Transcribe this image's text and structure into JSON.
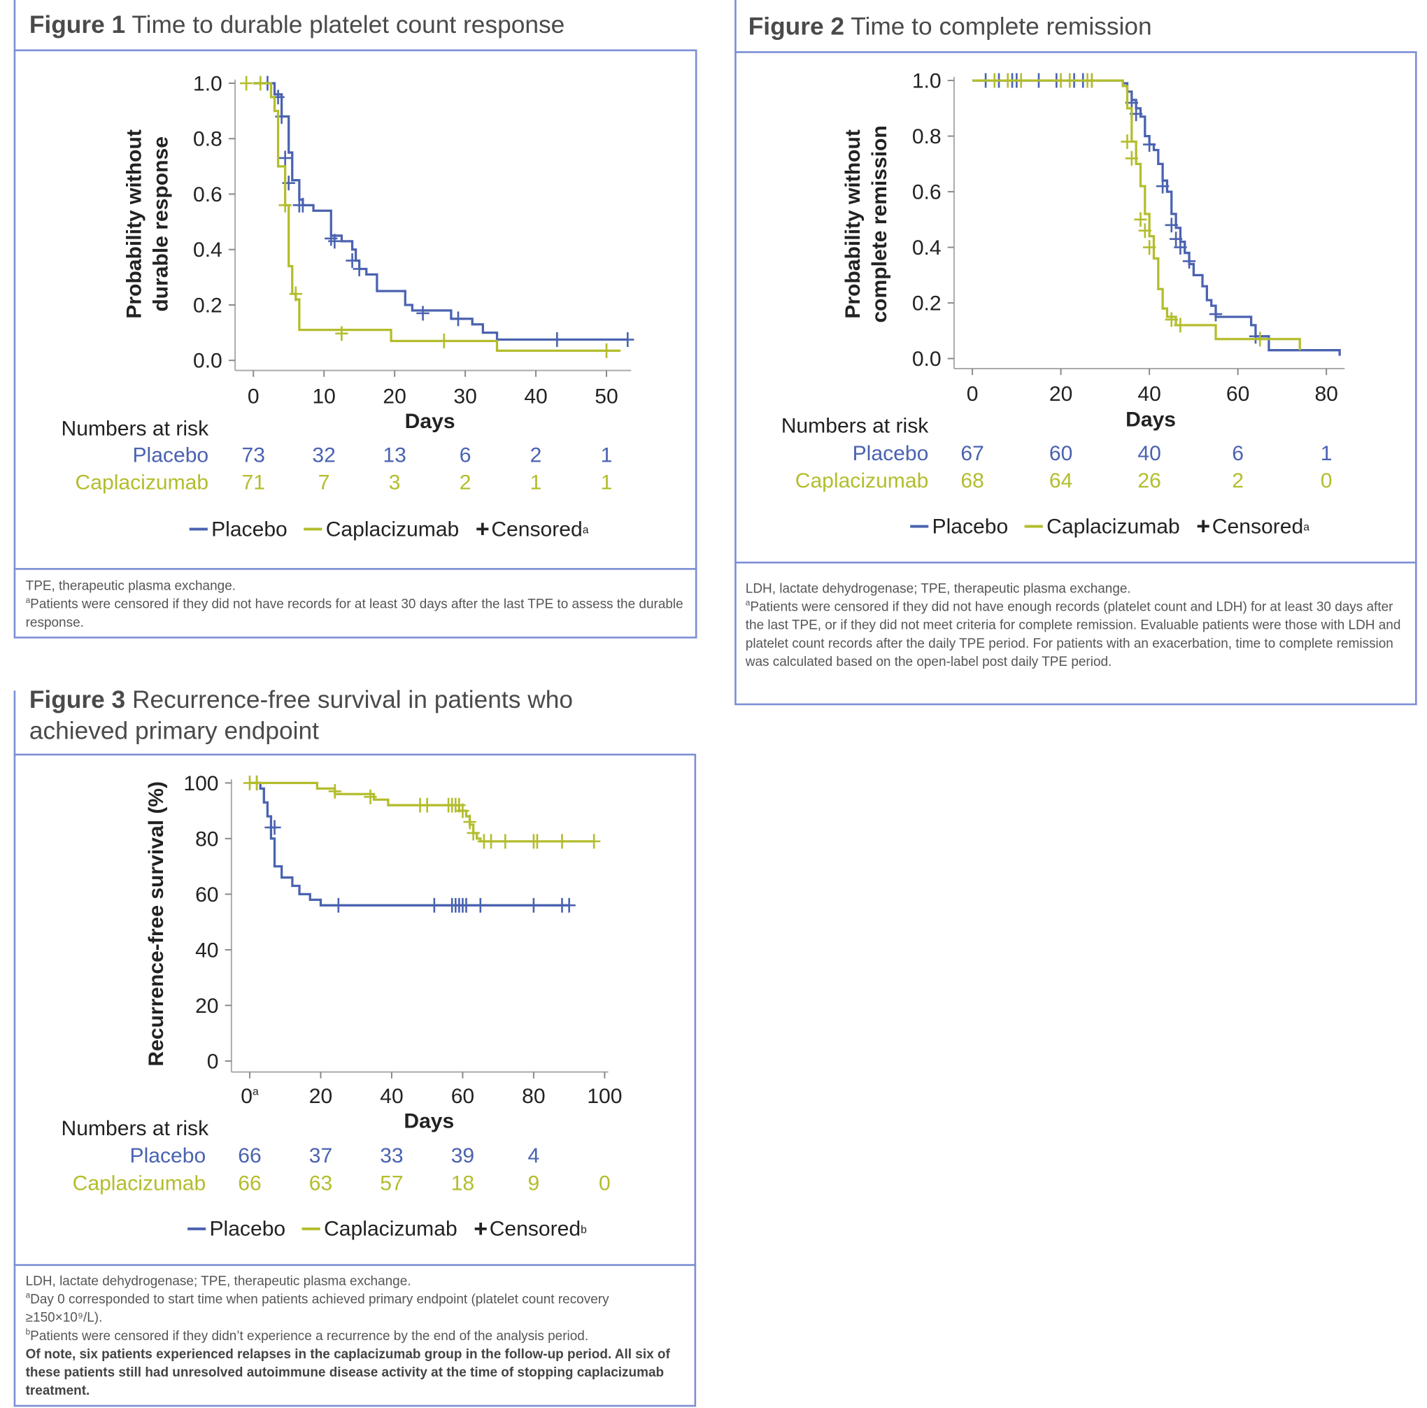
{
  "colors": {
    "placebo": "#4a62b0",
    "caplacizumab": "#b3bd2c",
    "frame": "#7c8fd6"
  },
  "legend": {
    "placebo": "Placebo",
    "caplacizumab": "Caplacizumab",
    "censored": "Censored",
    "censor_icon": "plus-icon"
  },
  "numbers_at_risk_label": "Numbers at risk",
  "chart_data": [
    {
      "type": "line",
      "figure_label": "Figure 1",
      "title": "Time to durable platelet count response",
      "xlabel": "Days",
      "ylabel": [
        "Probability without",
        "durable response"
      ],
      "xlim": [
        0,
        50
      ],
      "ylim": [
        0,
        1
      ],
      "xticks": [
        "0",
        "10",
        "20",
        "30",
        "40",
        "50"
      ],
      "xtick_values": [
        0,
        10,
        20,
        30,
        40,
        50
      ],
      "yticks": [
        "0.0",
        "0.2",
        "0.4",
        "0.6",
        "0.8",
        "1.0"
      ],
      "ytick_values": [
        0,
        0.2,
        0.4,
        0.6,
        0.8,
        1.0
      ],
      "censored_marker": "a",
      "series": [
        {
          "name": "Placebo",
          "key": "placebo",
          "steps": [
            [
              0,
              1
            ],
            [
              3,
              0.96
            ],
            [
              4,
              0.88
            ],
            [
              5,
              0.75
            ],
            [
              5.5,
              0.65
            ],
            [
              6.5,
              0.58
            ],
            [
              7,
              0.56
            ],
            [
              8.5,
              0.54
            ],
            [
              11,
              0.45
            ],
            [
              12.5,
              0.43
            ],
            [
              14,
              0.4
            ],
            [
              14.5,
              0.36
            ],
            [
              15,
              0.33
            ],
            [
              16,
              0.31
            ],
            [
              17.5,
              0.25
            ],
            [
              21.5,
              0.2
            ],
            [
              22.5,
              0.18
            ],
            [
              28,
              0.15
            ],
            [
              31,
              0.13
            ],
            [
              32.5,
              0.1
            ],
            [
              34.5,
              0.075
            ],
            [
              53,
              0.075
            ]
          ],
          "censored": [
            [
              2,
              1
            ],
            [
              3.5,
              0.95
            ],
            [
              4,
              0.88
            ],
            [
              4.5,
              0.73
            ],
            [
              5,
              0.64
            ],
            [
              6.5,
              0.56
            ],
            [
              7,
              0.56
            ],
            [
              11,
              0.44
            ],
            [
              11.5,
              0.43
            ],
            [
              14,
              0.36
            ],
            [
              15,
              0.33
            ],
            [
              24,
              0.17
            ],
            [
              29,
              0.15
            ],
            [
              43,
              0.075
            ],
            [
              53,
              0.075
            ]
          ],
          "at_risk": [
            "73",
            "32",
            "13",
            "6",
            "2",
            "1"
          ]
        },
        {
          "name": "Caplacizumab",
          "key": "caplacizumab",
          "steps": [
            [
              0,
              1
            ],
            [
              2.5,
              0.95
            ],
            [
              3,
              0.9
            ],
            [
              3.5,
              0.7
            ],
            [
              4.5,
              0.56
            ],
            [
              5,
              0.34
            ],
            [
              5.5,
              0.24
            ],
            [
              6,
              0.22
            ],
            [
              6.5,
              0.11
            ],
            [
              19.5,
              0.07
            ],
            [
              34.5,
              0.035
            ],
            [
              52,
              0.035
            ]
          ],
          "censored": [
            [
              -1,
              1
            ],
            [
              1,
              1
            ],
            [
              4.5,
              0.56
            ],
            [
              6,
              0.24
            ],
            [
              12.5,
              0.097
            ],
            [
              27,
              0.07
            ],
            [
              50,
              0.035
            ]
          ],
          "at_risk": [
            "71",
            "7",
            "3",
            "2",
            "1",
            "1"
          ]
        }
      ],
      "footnotes": [
        {
          "marker": "",
          "text": "TPE, therapeutic plasma exchange."
        },
        {
          "marker": "a",
          "text": "Patients were censored if they did not have records for at least 30 days after the last TPE to assess the durable response."
        }
      ]
    },
    {
      "type": "line",
      "figure_label": "Figure 2",
      "title": "Time to complete remission",
      "xlabel": "Days",
      "ylabel": [
        "Probability without",
        "complete remission"
      ],
      "xlim": [
        0,
        80
      ],
      "ylim": [
        0,
        1
      ],
      "xticks": [
        "0",
        "20",
        "40",
        "60",
        "80"
      ],
      "xtick_values": [
        0,
        20,
        40,
        60,
        80
      ],
      "yticks": [
        "0.0",
        "0.2",
        "0.4",
        "0.6",
        "0.8",
        "1.0"
      ],
      "ytick_values": [
        0,
        0.2,
        0.4,
        0.6,
        0.8,
        1.0
      ],
      "censored_marker": "a",
      "series": [
        {
          "name": "Placebo",
          "key": "placebo",
          "steps": [
            [
              0,
              1
            ],
            [
              34,
              0.99
            ],
            [
              35,
              0.96
            ],
            [
              36,
              0.93
            ],
            [
              37,
              0.9
            ],
            [
              38,
              0.87
            ],
            [
              39,
              0.8
            ],
            [
              40,
              0.77
            ],
            [
              41,
              0.75
            ],
            [
              42,
              0.7
            ],
            [
              43,
              0.64
            ],
            [
              44,
              0.6
            ],
            [
              45,
              0.52
            ],
            [
              46,
              0.47
            ],
            [
              47,
              0.42
            ],
            [
              48,
              0.38
            ],
            [
              49,
              0.34
            ],
            [
              50,
              0.3
            ],
            [
              52,
              0.26
            ],
            [
              53,
              0.21
            ],
            [
              54,
              0.19
            ],
            [
              55,
              0.15
            ],
            [
              63,
              0.12
            ],
            [
              64,
              0.08
            ],
            [
              67,
              0.03
            ],
            [
              83,
              0.03
            ],
            [
              83,
              0.01
            ]
          ],
          "censored": [
            [
              3,
              1
            ],
            [
              6,
              1
            ],
            [
              9,
              1
            ],
            [
              10,
              1
            ],
            [
              15,
              1
            ],
            [
              19,
              1
            ],
            [
              23,
              1
            ],
            [
              25,
              1
            ],
            [
              27,
              1
            ],
            [
              36,
              0.92
            ],
            [
              37,
              0.88
            ],
            [
              40,
              0.77
            ],
            [
              43,
              0.62
            ],
            [
              45,
              0.48
            ],
            [
              46,
              0.43
            ],
            [
              47,
              0.4
            ],
            [
              49,
              0.35
            ],
            [
              55,
              0.16
            ],
            [
              64,
              0.08
            ]
          ],
          "at_risk": [
            "67",
            "60",
            "40",
            "6",
            "1"
          ]
        },
        {
          "name": "Caplacizumab",
          "key": "caplacizumab",
          "steps": [
            [
              0,
              1
            ],
            [
              34,
              0.98
            ],
            [
              35,
              0.9
            ],
            [
              36,
              0.78
            ],
            [
              37,
              0.7
            ],
            [
              38,
              0.62
            ],
            [
              39,
              0.52
            ],
            [
              40,
              0.44
            ],
            [
              41,
              0.36
            ],
            [
              42,
              0.25
            ],
            [
              43,
              0.18
            ],
            [
              44,
              0.15
            ],
            [
              46,
              0.12
            ],
            [
              55,
              0.07
            ],
            [
              74,
              0.07
            ],
            [
              74,
              0.03
            ]
          ],
          "censored": [
            [
              5,
              1
            ],
            [
              8,
              1
            ],
            [
              11,
              1
            ],
            [
              20,
              1
            ],
            [
              22,
              1
            ],
            [
              26,
              1
            ],
            [
              27,
              1
            ],
            [
              35,
              0.78
            ],
            [
              36,
              0.72
            ],
            [
              38,
              0.5
            ],
            [
              39,
              0.46
            ],
            [
              40,
              0.4
            ],
            [
              45,
              0.14
            ],
            [
              47,
              0.12
            ],
            [
              65,
              0.07
            ]
          ],
          "at_risk": [
            "68",
            "64",
            "26",
            "2",
            "0"
          ]
        }
      ],
      "footnotes": [
        {
          "marker": "",
          "text": "LDH, lactate dehydrogenase; TPE, therapeutic plasma exchange."
        },
        {
          "marker": "a",
          "text": "Patients were censored if they did not have enough records (platelet count and LDH) for at least 30 days after the last TPE, or if they did not meet criteria for complete remission. Evaluable patients were those with LDH and platelet count records after the daily TPE period. For patients with an exacerbation, time to complete remission was calculated based on the open-label post daily TPE period."
        }
      ]
    },
    {
      "type": "line",
      "figure_label": "Figure 3",
      "title": "Recurrence-free survival in patients who achieved primary endpoint",
      "xlabel": "Days",
      "ylabel": [
        "Recurrence-free survival (%)"
      ],
      "xlim": [
        0,
        100
      ],
      "ylim": [
        0,
        100
      ],
      "xticks": [
        "0",
        "20",
        "40",
        "60",
        "80",
        "100"
      ],
      "xtick_values": [
        0,
        20,
        40,
        60,
        80,
        100
      ],
      "xtick0_marker": "a",
      "yticks": [
        "0",
        "20",
        "40",
        "60",
        "80",
        "100"
      ],
      "ytick_values": [
        0,
        20,
        40,
        60,
        80,
        100
      ],
      "censored_marker": "b",
      "series": [
        {
          "name": "Placebo",
          "key": "placebo",
          "steps": [
            [
              0,
              100
            ],
            [
              3,
              98
            ],
            [
              4,
              93
            ],
            [
              5,
              88
            ],
            [
              6,
              80
            ],
            [
              7,
              70
            ],
            [
              9,
              66
            ],
            [
              12,
              63
            ],
            [
              14,
              60
            ],
            [
              17,
              58
            ],
            [
              20,
              56
            ],
            [
              90,
              56
            ]
          ],
          "censored": [
            [
              2,
              100
            ],
            [
              6,
              84
            ],
            [
              7,
              84
            ],
            [
              25,
              56
            ],
            [
              52,
              56
            ],
            [
              57,
              56
            ],
            [
              58,
              56
            ],
            [
              59,
              56
            ],
            [
              60,
              56
            ],
            [
              61,
              56
            ],
            [
              65,
              56
            ],
            [
              80,
              56
            ],
            [
              88,
              56
            ],
            [
              90,
              56
            ]
          ],
          "at_risk": [
            "66",
            "37",
            "33",
            "39",
            "4",
            ""
          ]
        },
        {
          "name": "Caplacizumab",
          "key": "caplacizumab",
          "steps": [
            [
              0,
              100
            ],
            [
              19,
              98
            ],
            [
              24,
              96
            ],
            [
              35,
              94
            ],
            [
              39,
              92
            ],
            [
              59,
              90
            ],
            [
              61,
              88
            ],
            [
              62,
              85
            ],
            [
              63,
              82
            ],
            [
              64,
              80
            ],
            [
              65,
              79
            ],
            [
              97,
              79
            ]
          ],
          "censored": [
            [
              0,
              100
            ],
            [
              2,
              100
            ],
            [
              24,
              97
            ],
            [
              34,
              95
            ],
            [
              48,
              92
            ],
            [
              50,
              92
            ],
            [
              56,
              92
            ],
            [
              57,
              92
            ],
            [
              58,
              92
            ],
            [
              59,
              92
            ],
            [
              60,
              90
            ],
            [
              62,
              86
            ],
            [
              63,
              82
            ],
            [
              66,
              79
            ],
            [
              68,
              79
            ],
            [
              72,
              79
            ],
            [
              80,
              79
            ],
            [
              81,
              79
            ],
            [
              88,
              79
            ],
            [
              97,
              79
            ]
          ],
          "at_risk": [
            "66",
            "63",
            "57",
            "18",
            "9",
            "0"
          ]
        }
      ],
      "footnotes": [
        {
          "marker": "",
          "text": "LDH, lactate dehydrogenase; TPE, therapeutic plasma exchange."
        },
        {
          "marker": "a",
          "text": "Day 0 corresponded to start time when patients achieved primary endpoint (platelet count recovery ≥150×10⁹/L)."
        },
        {
          "marker": "b",
          "text": "Patients were censored if they didn’t experience a recurrence by the end of the analysis period."
        },
        {
          "marker": "",
          "bold": true,
          "text": "Of note, six patients experienced relapses in the caplacizumab group in the follow-up period. All six of these patients still had unresolved autoimmune disease activity at the time of stopping caplacizumab treatment."
        }
      ]
    }
  ]
}
